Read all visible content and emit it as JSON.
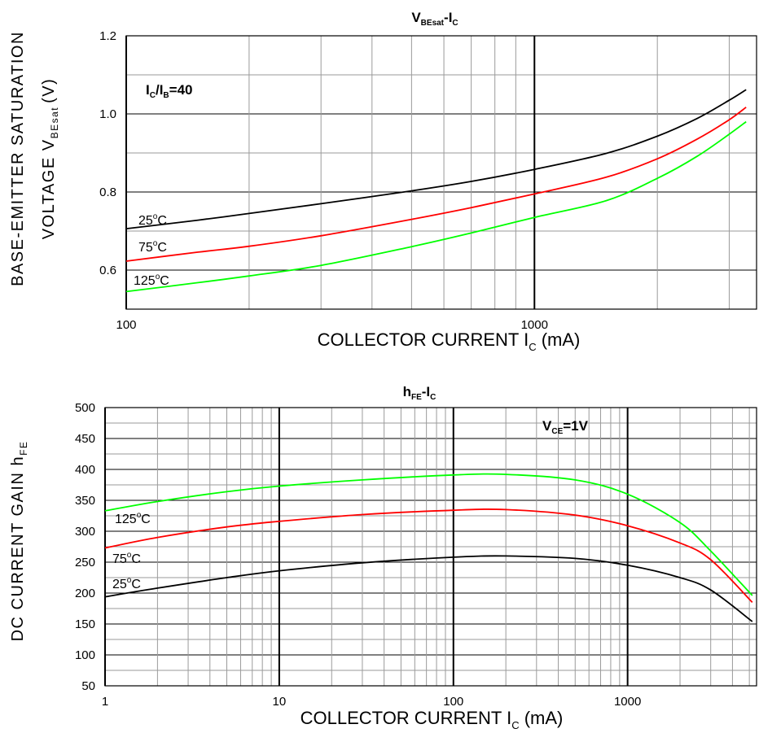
{
  "chart_data": [
    {
      "type": "line",
      "title": "V",
      "title_sub": "BEsat",
      "title_suffix": "-I",
      "title_suffix_sub": "C",
      "xscale": "log",
      "xlim": [
        100,
        3500
      ],
      "ylim": [
        0.5,
        1.2
      ],
      "xticks": [
        100,
        1000
      ],
      "xtick_labels": [
        "100",
        "1000"
      ],
      "yticks": [
        0.6,
        0.8,
        1.0,
        1.2
      ],
      "ytick_labels": [
        "0.6",
        "0.8",
        "1.0",
        "1.2"
      ],
      "grid": true,
      "xlabel": "COLLECTOR CURRENT I",
      "xlabel_sub": "C",
      "xlabel_unit": " (mA)",
      "ylabel_line1": "BASE-EMITTER SATURATION",
      "ylabel_line2": "VOLTAGE V",
      "ylabel_line2_sub": "BEsat",
      "ylabel_line2_unit": "(V)",
      "annotation": {
        "text": "I",
        "sub1": "C",
        "mid": "/I",
        "sub2": "B",
        "end": "=40"
      },
      "series": [
        {
          "name": "25°C",
          "label_base": "25",
          "label_unit": "C",
          "color": "#000000",
          "x": [
            100,
            150,
            200,
            300,
            500,
            700,
            1000,
            1500,
            2000,
            2500,
            3000,
            3300
          ],
          "y": [
            0.706,
            0.728,
            0.745,
            0.77,
            0.803,
            0.827,
            0.858,
            0.899,
            0.943,
            0.988,
            1.035,
            1.062
          ]
        },
        {
          "name": "75°C",
          "label_base": "75",
          "label_unit": "C",
          "color": "#ff0000",
          "x": [
            100,
            150,
            200,
            300,
            500,
            700,
            1000,
            1500,
            2000,
            2500,
            3000,
            3300
          ],
          "y": [
            0.623,
            0.646,
            0.661,
            0.688,
            0.73,
            0.76,
            0.795,
            0.838,
            0.885,
            0.935,
            0.985,
            1.017
          ]
        },
        {
          "name": "125°C",
          "label_base": "125",
          "label_unit": "C",
          "color": "#00ff00",
          "x": [
            100,
            150,
            200,
            300,
            500,
            700,
            1000,
            1500,
            2000,
            2500,
            3000,
            3300
          ],
          "y": [
            0.545,
            0.568,
            0.585,
            0.612,
            0.66,
            0.695,
            0.735,
            0.778,
            0.835,
            0.891,
            0.948,
            0.98
          ]
        }
      ]
    },
    {
      "type": "line",
      "title": "h",
      "title_sub": "FE",
      "title_suffix": "-I",
      "title_suffix_sub": "C",
      "xscale": "log",
      "xlim": [
        1,
        5500
      ],
      "ylim": [
        50,
        500
      ],
      "xticks": [
        1,
        10,
        100,
        1000
      ],
      "xtick_labels": [
        "1",
        "10",
        "100",
        "1000"
      ],
      "yticks": [
        50,
        100,
        150,
        200,
        250,
        300,
        350,
        400,
        450,
        500
      ],
      "ytick_labels": [
        "50",
        "100",
        "150",
        "200",
        "250",
        "300",
        "350",
        "400",
        "450",
        "500"
      ],
      "grid": true,
      "xlabel": "COLLECTOR CURRENT I",
      "xlabel_sub": "C",
      "xlabel_unit": " (mA)",
      "ylabel": "DC CURRENT GAIN h",
      "ylabel_sub": "FE",
      "annotation": {
        "text": "V",
        "sub1": "CE",
        "end": "=1V"
      },
      "series": [
        {
          "name": "125°C",
          "label_base": "125",
          "label_unit": "C",
          "color": "#00ff00",
          "x": [
            1,
            2,
            5,
            10,
            30,
            100,
            200,
            500,
            1000,
            2000,
            3000,
            5200
          ],
          "y": [
            333,
            348,
            364,
            373,
            383,
            391,
            392,
            383,
            360,
            314,
            268,
            196
          ]
        },
        {
          "name": "75°C",
          "label_base": "75",
          "label_unit": "C",
          "color": "#ff0000",
          "x": [
            1,
            2,
            5,
            10,
            30,
            100,
            200,
            500,
            1000,
            2000,
            3000,
            5200
          ],
          "y": [
            273,
            290,
            307,
            316,
            327,
            334,
            335,
            326,
            309,
            281,
            254,
            185
          ]
        },
        {
          "name": "25°C",
          "label_base": "25",
          "label_unit": "C",
          "color": "#000000",
          "x": [
            1,
            2,
            5,
            10,
            30,
            100,
            200,
            500,
            1000,
            2000,
            3000,
            5200
          ],
          "y": [
            194,
            208,
            225,
            236,
            249,
            258,
            260,
            256,
            245,
            225,
            205,
            154
          ]
        }
      ]
    }
  ]
}
